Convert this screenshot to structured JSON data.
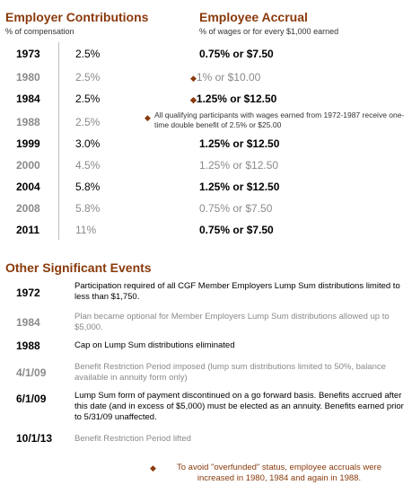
{
  "employer": {
    "title": "Employer Contributions",
    "subtitle": "% of compensation"
  },
  "employee": {
    "title": "Employee Accrual",
    "subtitle": "% of wages or for every $1,000 earned"
  },
  "rows": [
    {
      "year": "1973",
      "pct": "2.5%",
      "accrual": "0.75% or $7.50"
    },
    {
      "year": "1980",
      "pct": "2.5%",
      "accrual": "1% or $10.00"
    },
    {
      "year": "1984",
      "pct": "2.5%",
      "accrual": "1.25% or $12.50"
    },
    {
      "year": "1988",
      "pct": "2.5%",
      "note": "All qualifying participants with wages earned from 1972-1987 receive one-time double benefit of 2.5% or $25.00"
    },
    {
      "year": "1999",
      "pct": "3.0%",
      "accrual": "1.25% or $12.50"
    },
    {
      "year": "2000",
      "pct": "4.5%",
      "accrual": "1.25% or $12.50"
    },
    {
      "year": "2004",
      "pct": "5.8%",
      "accrual": "1.25% or $12.50"
    },
    {
      "year": "2008",
      "pct": "5.8%",
      "accrual": "0.75% or $7.50"
    },
    {
      "year": "2011",
      "pct": "11%",
      "accrual": "0.75% or $7.50"
    }
  ],
  "events": {
    "title": "Other Significant Events",
    "items": [
      {
        "date": "1972",
        "text": "Participation required of all CGF Member Employers Lump Sum distributions limited to less than $1,750."
      },
      {
        "date": "1984",
        "text": "Plan became optional for Member Employers Lump Sum distributions allowed up to $5,000."
      },
      {
        "date": "1988",
        "text": "Cap on Lump Sum distributions eliminated"
      },
      {
        "date": "4/1/09",
        "text": "Benefit Restriction Period imposed (lump sum distributions limited to 50%, balance available in annuity form only)"
      },
      {
        "date": "6/1/09",
        "text": "Lump Sum form of payment discontinued on a go forward basis. Benefits accrued after this date (and in excess of $5,000) must be elected as an annuity.  Benefits earned prior to 5/31/09 unaffected."
      },
      {
        "date": "10/1/13",
        "text": "Benefit Restriction Period lifted"
      }
    ]
  },
  "footnote": "To avoid \"overfunded\" status, employee accruals were increased in 1980, 1984 and again in 1988.",
  "colors": {
    "accent": "#8a3a0c",
    "dim": "#8a8a8a"
  }
}
